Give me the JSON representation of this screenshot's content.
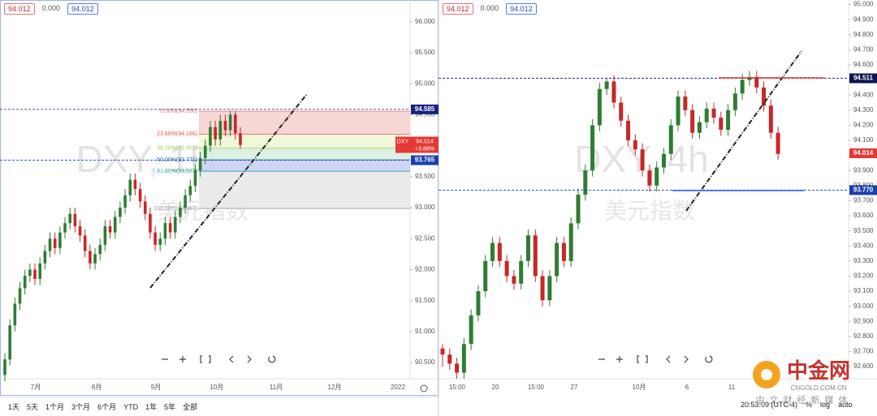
{
  "chart_data": [
    {
      "type": "candlestick",
      "header": [
        "94.012",
        "0.000",
        "94.012"
      ],
      "watermark": "DXY, 1D",
      "watermark_sub": "美元指数",
      "up_color": "#2e7d32",
      "down_color": "#c62828",
      "ylim": [
        90.24,
        96.35
      ],
      "yticks": [
        {
          "value": 96,
          "label": "96.000"
        },
        {
          "value": 95.5,
          "label": "95.500"
        },
        {
          "value": 95,
          "label": "95.000"
        },
        {
          "value": 94.5,
          "label": "94.500"
        },
        {
          "value": 94,
          "label": "94.000"
        },
        {
          "value": 93.5,
          "label": "93.500"
        },
        {
          "value": 93,
          "label": "93.000"
        },
        {
          "value": 92.5,
          "label": "92.500"
        },
        {
          "value": 92,
          "label": "92.000"
        },
        {
          "value": 91.5,
          "label": "91.500"
        },
        {
          "value": 91,
          "label": "91.000"
        },
        {
          "value": 90.5,
          "label": "90.500"
        }
      ],
      "x_labels": [
        "7月",
        "8月",
        "9月",
        "10月",
        "11月",
        "12月",
        "2022"
      ],
      "ohlc": [
        [
          90.3,
          90.65,
          90.2,
          90.55
        ],
        [
          90.55,
          91.2,
          90.45,
          91.1
        ],
        [
          91.1,
          91.55,
          91.0,
          91.45
        ],
        [
          91.45,
          91.8,
          91.35,
          91.7
        ],
        [
          91.7,
          92.0,
          91.6,
          91.9
        ],
        [
          91.9,
          92.1,
          91.8,
          92.0
        ],
        [
          92.0,
          92.1,
          91.75,
          91.85
        ],
        [
          91.85,
          92.2,
          91.75,
          92.1
        ],
        [
          92.1,
          92.4,
          92.0,
          92.3
        ],
        [
          92.3,
          92.6,
          92.2,
          92.5
        ],
        [
          92.5,
          92.6,
          92.25,
          92.35
        ],
        [
          92.35,
          92.7,
          92.25,
          92.6
        ],
        [
          92.6,
          92.85,
          92.5,
          92.75
        ],
        [
          92.75,
          93.0,
          92.65,
          92.9
        ],
        [
          92.9,
          93.0,
          92.6,
          92.7
        ],
        [
          92.7,
          92.8,
          92.45,
          92.55
        ],
        [
          92.55,
          92.65,
          92.2,
          92.3
        ],
        [
          92.3,
          92.4,
          92.0,
          92.1
        ],
        [
          92.1,
          92.35,
          92.0,
          92.25
        ],
        [
          92.25,
          92.5,
          92.15,
          92.4
        ],
        [
          92.4,
          92.8,
          92.3,
          92.7
        ],
        [
          92.7,
          92.8,
          92.5,
          92.6
        ],
        [
          92.6,
          92.95,
          92.5,
          92.85
        ],
        [
          92.85,
          93.1,
          92.75,
          93.0
        ],
        [
          93.0,
          93.3,
          92.9,
          93.2
        ],
        [
          93.2,
          93.55,
          93.1,
          93.45
        ],
        [
          93.45,
          93.55,
          93.2,
          93.3
        ],
        [
          93.3,
          93.4,
          93.0,
          93.1
        ],
        [
          93.1,
          93.2,
          92.8,
          92.9
        ],
        [
          92.9,
          93.0,
          92.5,
          92.6
        ],
        [
          92.6,
          92.7,
          92.3,
          92.4
        ],
        [
          92.4,
          92.6,
          92.3,
          92.5
        ],
        [
          92.5,
          92.85,
          92.4,
          92.75
        ],
        [
          92.75,
          92.85,
          92.5,
          92.6
        ],
        [
          92.6,
          92.95,
          92.5,
          92.85
        ],
        [
          92.85,
          93.1,
          92.75,
          93.0
        ],
        [
          93.0,
          93.3,
          92.9,
          93.2
        ],
        [
          93.2,
          93.45,
          93.1,
          93.35
        ],
        [
          93.35,
          93.7,
          93.25,
          93.6
        ],
        [
          93.6,
          93.9,
          93.5,
          93.8
        ],
        [
          93.8,
          94.1,
          93.7,
          94.0
        ],
        [
          94.0,
          94.4,
          93.9,
          94.3
        ],
        [
          94.3,
          94.4,
          94.0,
          94.1
        ],
        [
          94.1,
          94.5,
          94.0,
          94.4
        ],
        [
          94.4,
          94.5,
          94.15,
          94.25
        ],
        [
          94.25,
          94.56,
          94.15,
          94.5
        ],
        [
          94.5,
          94.56,
          94.1,
          94.2
        ],
        [
          94.2,
          94.3,
          93.95,
          94.01
        ]
      ],
      "fib_levels": [
        {
          "value": 94.556,
          "label": "0.00%(94.556)"
        },
        {
          "value": 94.186,
          "label": "23.60%(94.186)"
        },
        {
          "value": 93.957,
          "label": "38.20%(93.957)"
        },
        {
          "value": 93.771,
          "label": "50.00%(93.771)"
        },
        {
          "value": 93.587,
          "label": "61.80%(93.587)"
        },
        {
          "value": 92.987,
          "label": "100.00%(92.987)"
        }
      ],
      "fib_colors": [
        "#e57373",
        "#ef5350",
        "#9ccc65",
        "#1565c0",
        "#26a69a",
        "#9e9e9e"
      ],
      "fib_fills": [
        "#f6cfcf",
        "#eef6d2",
        "#d6eedb",
        "#c8ccf6",
        "#e8e8e8"
      ],
      "price_lines": [
        94.585,
        93.765
      ],
      "price_line_colors": [
        "#1a237e",
        "#1a3fb0"
      ],
      "last": {
        "name": "DXY",
        "value": 94.014,
        "change": "+3.88%"
      },
      "last_color": "#e53935"
    },
    {
      "type": "candlestick",
      "header": [
        "94.012",
        "0.000",
        "94.012"
      ],
      "watermark": "DXY, 4h",
      "watermark_sub": "美元指数",
      "up_color": "#2e7d32",
      "down_color": "#c62828",
      "ylim": [
        92.52,
        95.03
      ],
      "yticks": [
        {
          "value": 95,
          "label": "95.000"
        },
        {
          "value": 94.9,
          "label": "94.900"
        },
        {
          "value": 94.8,
          "label": "94.800"
        },
        {
          "value": 94.7,
          "label": "94.700"
        },
        {
          "value": 94.6,
          "label": "94.600"
        },
        {
          "value": 94.5,
          "label": "94.500"
        },
        {
          "value": 94.4,
          "label": "94.400"
        },
        {
          "value": 94.3,
          "label": "94.300"
        },
        {
          "value": 94.2,
          "label": "94.200"
        },
        {
          "value": 94.1,
          "label": "94.100"
        },
        {
          "value": 94,
          "label": "94.000"
        },
        {
          "value": 93.9,
          "label": "93.900"
        },
        {
          "value": 93.8,
          "label": "93.800"
        },
        {
          "value": 93.7,
          "label": "93.700"
        },
        {
          "value": 93.6,
          "label": "93.600"
        },
        {
          "value": 93.5,
          "label": "93.500"
        },
        {
          "value": 93.4,
          "label": "93.400"
        },
        {
          "value": 93.3,
          "label": "93.300"
        },
        {
          "value": 93.2,
          "label": "93.200"
        },
        {
          "value": 93.1,
          "label": "93.100"
        },
        {
          "value": 93,
          "label": "93.000"
        },
        {
          "value": 92.9,
          "label": "92.900"
        },
        {
          "value": 92.8,
          "label": "92.800"
        },
        {
          "value": 92.7,
          "label": "92.700"
        },
        {
          "value": 92.6,
          "label": "92.600"
        }
      ],
      "x_labels": [
        "15:00",
        "20",
        "15:00",
        "27",
        "10月",
        "6",
        "11"
      ],
      "ohlc": [
        [
          92.72,
          92.75,
          92.6,
          92.68
        ],
        [
          92.68,
          92.72,
          92.58,
          92.62
        ],
        [
          92.62,
          92.66,
          92.52,
          92.56
        ],
        [
          92.56,
          92.79,
          92.52,
          92.75
        ],
        [
          92.75,
          92.98,
          92.71,
          92.94
        ],
        [
          92.94,
          93.14,
          92.9,
          93.1
        ],
        [
          93.1,
          93.34,
          93.06,
          93.3
        ],
        [
          93.3,
          93.46,
          93.26,
          93.42
        ],
        [
          93.42,
          93.46,
          93.26,
          93.3
        ],
        [
          93.3,
          93.34,
          93.16,
          93.2
        ],
        [
          93.2,
          93.24,
          93.11,
          93.15
        ],
        [
          93.15,
          93.34,
          93.11,
          93.3
        ],
        [
          93.3,
          93.51,
          93.26,
          93.47
        ],
        [
          93.47,
          93.51,
          93.16,
          93.2
        ],
        [
          93.2,
          93.24,
          93.0,
          93.04
        ],
        [
          93.04,
          93.24,
          93.0,
          93.2
        ],
        [
          93.2,
          93.46,
          93.16,
          93.42
        ],
        [
          93.42,
          93.46,
          93.26,
          93.3
        ],
        [
          93.3,
          93.59,
          93.26,
          93.55
        ],
        [
          93.55,
          93.78,
          93.51,
          93.74
        ],
        [
          93.74,
          93.94,
          93.7,
          93.9
        ],
        [
          93.9,
          94.24,
          93.86,
          94.2
        ],
        [
          94.2,
          94.48,
          94.16,
          94.44
        ],
        [
          94.44,
          94.51,
          94.4,
          94.49
        ],
        [
          94.49,
          94.53,
          94.31,
          94.35
        ],
        [
          94.35,
          94.39,
          94.19,
          94.23
        ],
        [
          94.23,
          94.27,
          94.06,
          94.1
        ],
        [
          94.1,
          94.14,
          94.0,
          94.04
        ],
        [
          94.04,
          94.08,
          93.86,
          93.9
        ],
        [
          93.9,
          93.94,
          93.76,
          93.8
        ],
        [
          93.8,
          93.96,
          93.76,
          93.92
        ],
        [
          93.92,
          94.05,
          93.88,
          94.01
        ],
        [
          94.01,
          94.24,
          93.97,
          94.2
        ],
        [
          94.2,
          94.43,
          94.16,
          94.39
        ],
        [
          94.39,
          94.43,
          94.26,
          94.3
        ],
        [
          94.3,
          94.34,
          94.11,
          94.15
        ],
        [
          94.15,
          94.26,
          94.11,
          94.22
        ],
        [
          94.22,
          94.35,
          94.18,
          94.31
        ],
        [
          94.31,
          94.35,
          94.21,
          94.25
        ],
        [
          94.25,
          94.29,
          94.13,
          94.17
        ],
        [
          94.17,
          94.34,
          94.13,
          94.3
        ],
        [
          94.3,
          94.45,
          94.26,
          94.41
        ],
        [
          94.41,
          94.54,
          94.37,
          94.5
        ],
        [
          94.5,
          94.56,
          94.46,
          94.52
        ],
        [
          94.52,
          94.56,
          94.41,
          94.45
        ],
        [
          94.45,
          94.49,
          94.29,
          94.33
        ],
        [
          94.33,
          94.37,
          94.11,
          94.15
        ],
        [
          94.15,
          94.19,
          93.97,
          94.01
        ]
      ],
      "price_lines": [
        94.511,
        {
          "value": 93.77,
          "label": "93.770"
        }
      ],
      "price_line_colors": [
        "#0d1452",
        "#1a3fb0"
      ],
      "last": {
        "value": 94.014
      },
      "last_color": "#e53935"
    }
  ],
  "ui": {
    "ranges": [
      "1天",
      "5天",
      "1个月",
      "3个月",
      "6个月",
      "YTD",
      "1年",
      "5年",
      "全部"
    ],
    "status": [
      "20:53:09 (UTC-4)",
      "%",
      "log",
      "auto"
    ]
  },
  "logo": {
    "name": "中金网",
    "domain": "CNGOLD.COM.CN",
    "slogan": "中文财经新媒体"
  }
}
